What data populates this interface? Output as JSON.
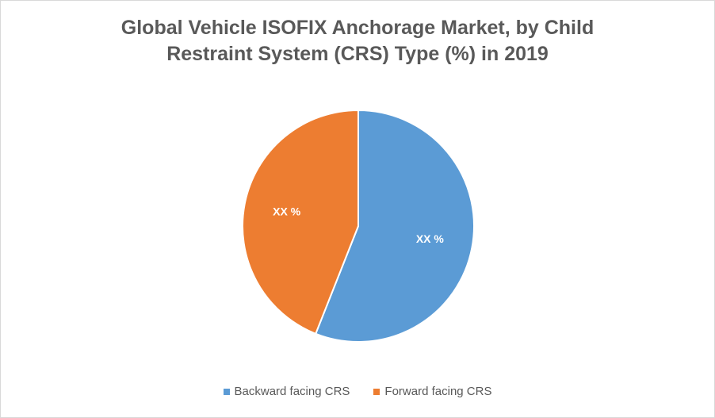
{
  "chart_data": {
    "type": "pie",
    "title_lines": [
      "Global Vehicle ISOFIX Anchorage Market, by Child",
      "Restraint System (CRS) Type (%) in 2019"
    ],
    "slices": [
      {
        "name": "Backward facing CRS",
        "value": 56,
        "label": "XX %",
        "color": "#5b9bd5"
      },
      {
        "name": "Forward facing CRS",
        "value": 44,
        "label": "XX %",
        "color": "#ed7d31"
      }
    ],
    "legend_position": "bottom"
  }
}
